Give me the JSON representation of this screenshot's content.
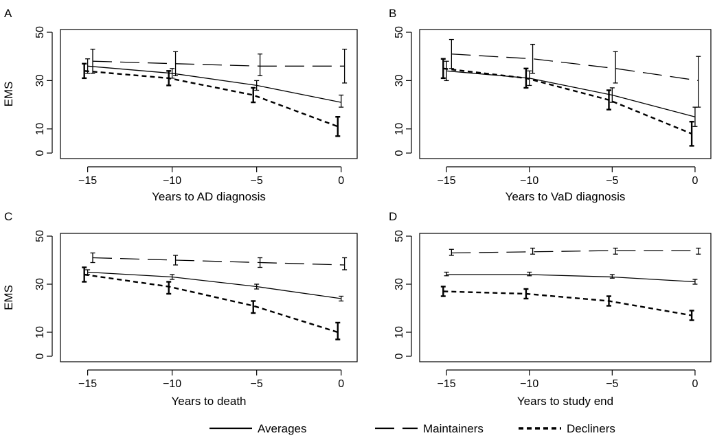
{
  "figure": {
    "ylabel": "EMS",
    "legend": {
      "placement": "bottom-center",
      "items": [
        {
          "label": "Averages",
          "style": "solid"
        },
        {
          "label": "Maintainers",
          "style": "longdash"
        },
        {
          "label": "Decliners",
          "style": "shortdash"
        }
      ]
    }
  },
  "chart_data": [
    {
      "panel": "A",
      "type": "line",
      "xlabel": "Years to AD diagnosis",
      "ylabel": "EMS",
      "xlim": [
        -16,
        0.5
      ],
      "ylim": [
        0,
        50
      ],
      "xticks": [
        -15,
        -10,
        -5,
        0
      ],
      "yticks": [
        0,
        10,
        30,
        50
      ],
      "series": [
        {
          "name": "Averages",
          "style": "solid",
          "points": [
            {
              "x": -15,
              "y": 36,
              "lo": 33,
              "hi": 39
            },
            {
              "x": -10,
              "y": 33,
              "lo": 31,
              "hi": 35
            },
            {
              "x": -5,
              "y": 28,
              "lo": 26,
              "hi": 30
            },
            {
              "x": 0,
              "y": 21,
              "lo": 19,
              "hi": 24
            }
          ]
        },
        {
          "name": "Maintainers",
          "style": "longdash",
          "points": [
            {
              "x": -14.7,
              "y": 38,
              "lo": 33,
              "hi": 43
            },
            {
              "x": -9.8,
              "y": 37,
              "lo": 32,
              "hi": 42
            },
            {
              "x": -4.8,
              "y": 36,
              "lo": 32,
              "hi": 41
            },
            {
              "x": 0.2,
              "y": 36,
              "lo": 29,
              "hi": 43
            }
          ]
        },
        {
          "name": "Decliners",
          "style": "shortdash",
          "points": [
            {
              "x": -15.2,
              "y": 34,
              "lo": 31,
              "hi": 37
            },
            {
              "x": -10.2,
              "y": 31,
              "lo": 28,
              "hi": 34
            },
            {
              "x": -5.2,
              "y": 24,
              "lo": 21,
              "hi": 27
            },
            {
              "x": -0.2,
              "y": 11,
              "lo": 7,
              "hi": 15
            }
          ]
        }
      ]
    },
    {
      "panel": "B",
      "type": "line",
      "xlabel": "Years to VaD diagnosis",
      "ylabel": "",
      "xlim": [
        -16,
        0.5
      ],
      "ylim": [
        0,
        50
      ],
      "xticks": [
        -15,
        -10,
        -5,
        0
      ],
      "yticks": [
        0,
        10,
        30,
        50
      ],
      "series": [
        {
          "name": "Averages",
          "style": "solid",
          "points": [
            {
              "x": -15,
              "y": 34,
              "lo": 30,
              "hi": 38
            },
            {
              "x": -10,
              "y": 31,
              "lo": 28,
              "hi": 34
            },
            {
              "x": -5,
              "y": 24,
              "lo": 21,
              "hi": 27
            },
            {
              "x": 0,
              "y": 15,
              "lo": 11,
              "hi": 19
            }
          ]
        },
        {
          "name": "Maintainers",
          "style": "longdash",
          "points": [
            {
              "x": -14.7,
              "y": 41,
              "lo": 35,
              "hi": 47
            },
            {
              "x": -9.8,
              "y": 39,
              "lo": 33,
              "hi": 45
            },
            {
              "x": -4.8,
              "y": 35,
              "lo": 29,
              "hi": 42
            },
            {
              "x": 0.2,
              "y": 30,
              "lo": 19,
              "hi": 40
            }
          ]
        },
        {
          "name": "Decliners",
          "style": "shortdash",
          "points": [
            {
              "x": -15.2,
              "y": 35,
              "lo": 31,
              "hi": 39
            },
            {
              "x": -10.2,
              "y": 31,
              "lo": 27,
              "hi": 35
            },
            {
              "x": -5.2,
              "y": 22,
              "lo": 18,
              "hi": 26
            },
            {
              "x": -0.2,
              "y": 8,
              "lo": 3,
              "hi": 13
            }
          ]
        }
      ]
    },
    {
      "panel": "C",
      "type": "line",
      "xlabel": "Years to death",
      "ylabel": "EMS",
      "xlim": [
        -16,
        0.5
      ],
      "ylim": [
        0,
        50
      ],
      "xticks": [
        -15,
        -10,
        -5,
        0
      ],
      "yticks": [
        0,
        10,
        30,
        50
      ],
      "series": [
        {
          "name": "Averages",
          "style": "solid",
          "points": [
            {
              "x": -15,
              "y": 35,
              "lo": 34,
              "hi": 36
            },
            {
              "x": -10,
              "y": 33,
              "lo": 32,
              "hi": 34
            },
            {
              "x": -5,
              "y": 29,
              "lo": 28,
              "hi": 30
            },
            {
              "x": 0,
              "y": 24,
              "lo": 23,
              "hi": 25
            }
          ]
        },
        {
          "name": "Maintainers",
          "style": "longdash",
          "points": [
            {
              "x": -14.7,
              "y": 41,
              "lo": 39,
              "hi": 43
            },
            {
              "x": -9.8,
              "y": 40,
              "lo": 38,
              "hi": 42
            },
            {
              "x": -4.8,
              "y": 39,
              "lo": 37,
              "hi": 41
            },
            {
              "x": 0.2,
              "y": 38,
              "lo": 36,
              "hi": 41
            }
          ]
        },
        {
          "name": "Decliners",
          "style": "shortdash",
          "points": [
            {
              "x": -15.2,
              "y": 34,
              "lo": 31,
              "hi": 37
            },
            {
              "x": -10.2,
              "y": 29,
              "lo": 26,
              "hi": 31
            },
            {
              "x": -5.2,
              "y": 21,
              "lo": 18,
              "hi": 23
            },
            {
              "x": -0.2,
              "y": 10,
              "lo": 7,
              "hi": 14
            }
          ]
        }
      ]
    },
    {
      "panel": "D",
      "type": "line",
      "xlabel": "Years to study end",
      "ylabel": "",
      "xlim": [
        -16,
        0.5
      ],
      "ylim": [
        0,
        50
      ],
      "xticks": [
        -15,
        -10,
        -5,
        0
      ],
      "yticks": [
        0,
        10,
        30,
        50
      ],
      "series": [
        {
          "name": "Averages",
          "style": "solid",
          "points": [
            {
              "x": -15,
              "y": 34,
              "lo": 33.5,
              "hi": 35
            },
            {
              "x": -10,
              "y": 34,
              "lo": 33.5,
              "hi": 35
            },
            {
              "x": -5,
              "y": 33,
              "lo": 32.5,
              "hi": 34
            },
            {
              "x": 0,
              "y": 31,
              "lo": 30,
              "hi": 32
            }
          ]
        },
        {
          "name": "Maintainers",
          "style": "longdash",
          "points": [
            {
              "x": -14.7,
              "y": 43,
              "lo": 42,
              "hi": 44.5
            },
            {
              "x": -9.8,
              "y": 43.5,
              "lo": 42.5,
              "hi": 45
            },
            {
              "x": -4.8,
              "y": 44,
              "lo": 42.5,
              "hi": 45
            },
            {
              "x": 0.2,
              "y": 44,
              "lo": 42.5,
              "hi": 45
            }
          ]
        },
        {
          "name": "Decliners",
          "style": "shortdash",
          "points": [
            {
              "x": -15.2,
              "y": 27,
              "lo": 25,
              "hi": 29
            },
            {
              "x": -10.2,
              "y": 26,
              "lo": 24,
              "hi": 28
            },
            {
              "x": -5.2,
              "y": 23,
              "lo": 21,
              "hi": 25
            },
            {
              "x": -0.2,
              "y": 17,
              "lo": 15,
              "hi": 19
            }
          ]
        }
      ]
    }
  ]
}
